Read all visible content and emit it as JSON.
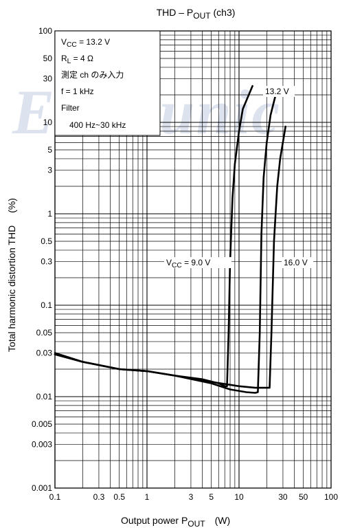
{
  "chart_data": {
    "type": "line",
    "title": "THD – P",
    "title_sub": "OUT",
    "title_suffix": " (ch3)",
    "xlabel_main": "Output power   P",
    "xlabel_sub": "OUT",
    "xlabel_unit": "(W)",
    "ylabel_main": "Total harmonic distortion   THD",
    "ylabel_unit": "(%)",
    "x_scale": "log",
    "y_scale": "log",
    "xlim": [
      0.1,
      100
    ],
    "ylim": [
      0.001,
      100
    ],
    "grid": true,
    "x_ticks": [
      {
        "v": 0.1,
        "t": "0.1"
      },
      {
        "v": 0.3,
        "t": "0.3"
      },
      {
        "v": 0.5,
        "t": "0.5"
      },
      {
        "v": 1,
        "t": "1"
      },
      {
        "v": 3,
        "t": "3"
      },
      {
        "v": 5,
        "t": "5"
      },
      {
        "v": 10,
        "t": "10"
      },
      {
        "v": 30,
        "t": "30"
      },
      {
        "v": 50,
        "t": "50"
      },
      {
        "v": 100,
        "t": "100"
      }
    ],
    "y_ticks": [
      {
        "v": 100,
        "t": "100"
      },
      {
        "v": 50,
        "t": "50"
      },
      {
        "v": 30,
        "t": "30"
      },
      {
        "v": 10,
        "t": "10"
      },
      {
        "v": 5,
        "t": "5"
      },
      {
        "v": 3,
        "t": "3"
      },
      {
        "v": 1,
        "t": "1"
      },
      {
        "v": 0.5,
        "t": "0.5"
      },
      {
        "v": 0.3,
        "t": "0.3"
      },
      {
        "v": 0.1,
        "t": "0.1"
      },
      {
        "v": 0.05,
        "t": "0.05"
      },
      {
        "v": 0.03,
        "t": "0.03"
      },
      {
        "v": 0.01,
        "t": "0.01"
      },
      {
        "v": 0.005,
        "t": "0.005"
      },
      {
        "v": 0.003,
        "t": "0.003"
      },
      {
        "v": 0.001,
        "t": "0.001"
      }
    ],
    "conditions": {
      "vcc": {
        "main": "V",
        "sub": "CC",
        "rest": " = 13.2 V"
      },
      "rl": {
        "main": "R",
        "sub": "L",
        "rest": " = 4 Ω"
      },
      "input": "測定 ch のみ入力",
      "freq": "f = 1 kHz",
      "filter": "Filter",
      "band": "400 Hz~30 kHz"
    },
    "series": [
      {
        "label_main": "V",
        "label_sub": "CC",
        "label_rest": " = 9.0 V",
        "points": [
          [
            0.1,
            0.03
          ],
          [
            0.2,
            0.024
          ],
          [
            0.5,
            0.02
          ],
          [
            1,
            0.019
          ],
          [
            2,
            0.017
          ],
          [
            4,
            0.0155
          ],
          [
            6,
            0.014
          ],
          [
            7,
            0.013
          ],
          [
            7.4,
            0.013
          ],
          [
            7.7,
            0.05
          ],
          [
            8,
            0.3
          ],
          [
            8.5,
            1.5
          ],
          [
            9,
            3.5
          ],
          [
            10,
            8
          ],
          [
            11,
            14
          ],
          [
            14,
            25
          ]
        ]
      },
      {
        "label_main": "",
        "label_sub": "",
        "label_rest": "13.2 V",
        "points": [
          [
            0.1,
            0.029
          ],
          [
            0.2,
            0.024
          ],
          [
            0.5,
            0.02
          ],
          [
            1,
            0.019
          ],
          [
            2,
            0.017
          ],
          [
            5,
            0.014
          ],
          [
            8,
            0.012
          ],
          [
            12,
            0.0112
          ],
          [
            15,
            0.011
          ],
          [
            16,
            0.0112
          ],
          [
            16.8,
            0.05
          ],
          [
            17.5,
            0.6
          ],
          [
            18.5,
            2.5
          ],
          [
            20,
            6
          ],
          [
            22,
            12
          ],
          [
            25,
            20
          ]
        ]
      },
      {
        "label_main": "",
        "label_sub": "",
        "label_rest": "16.0 V",
        "points": [
          [
            0.1,
            0.029
          ],
          [
            0.2,
            0.024
          ],
          [
            0.5,
            0.02
          ],
          [
            1,
            0.019
          ],
          [
            2,
            0.017
          ],
          [
            5,
            0.0145
          ],
          [
            10,
            0.013
          ],
          [
            15,
            0.0125
          ],
          [
            20,
            0.0125
          ],
          [
            21.5,
            0.0125
          ],
          [
            22.5,
            0.05
          ],
          [
            24,
            0.5
          ],
          [
            26,
            2
          ],
          [
            28,
            4
          ],
          [
            32,
            9
          ]
        ]
      }
    ]
  },
  "watermark": "Elecrunic"
}
